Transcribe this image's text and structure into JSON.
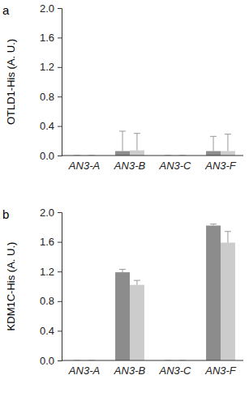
{
  "chart_data": [
    {
      "type": "bar",
      "title": "a",
      "y_label": "OTLD1-His (A. U.)",
      "categories": [
        "AN3-A",
        "AN3-B",
        "AN3-C",
        "AN3-F"
      ],
      "series": [
        {
          "color": "#8c8c8c",
          "values": [
            0,
            0.06,
            0,
            0.06
          ],
          "errors": [
            0,
            0.27,
            0,
            0.2
          ]
        },
        {
          "color": "#cccccc",
          "values": [
            0,
            0.07,
            0,
            0.06
          ],
          "errors": [
            0,
            0.23,
            0,
            0.23
          ]
        }
      ],
      "ylim": [
        0,
        2
      ],
      "yticks": [
        {
          "value": 0,
          "label": "0.0"
        },
        {
          "value": 0.4,
          "label": "0.4"
        },
        {
          "value": 0.8,
          "label": "0.8"
        },
        {
          "value": 1.2,
          "label": "1.2"
        },
        {
          "value": 1.6,
          "label": "1.6"
        },
        {
          "value": 2,
          "label": "2.0"
        }
      ],
      "grid": false
    },
    {
      "type": "bar",
      "title": "b",
      "y_label": "KDM1C-His (A. U.)",
      "categories": [
        "AN3-A",
        "AN3-B",
        "AN3-C",
        "AN3-F"
      ],
      "series": [
        {
          "color": "#8c8c8c",
          "values": [
            0,
            1.19,
            0,
            1.82
          ],
          "errors": [
            0,
            0.04,
            0,
            0.02
          ]
        },
        {
          "color": "#cccccc",
          "values": [
            0,
            1.02,
            0,
            1.59
          ],
          "errors": [
            0,
            0.06,
            0,
            0.15
          ]
        }
      ],
      "ylim": [
        0,
        2
      ],
      "yticks": [
        {
          "value": 0,
          "label": "0.0"
        },
        {
          "value": 0.4,
          "label": "0.4"
        },
        {
          "value": 0.8,
          "label": "0.8"
        },
        {
          "value": 1.2,
          "label": "1.2"
        },
        {
          "value": 1.6,
          "label": "1.6"
        },
        {
          "value": 2,
          "label": "2.0"
        }
      ],
      "grid": false
    }
  ]
}
